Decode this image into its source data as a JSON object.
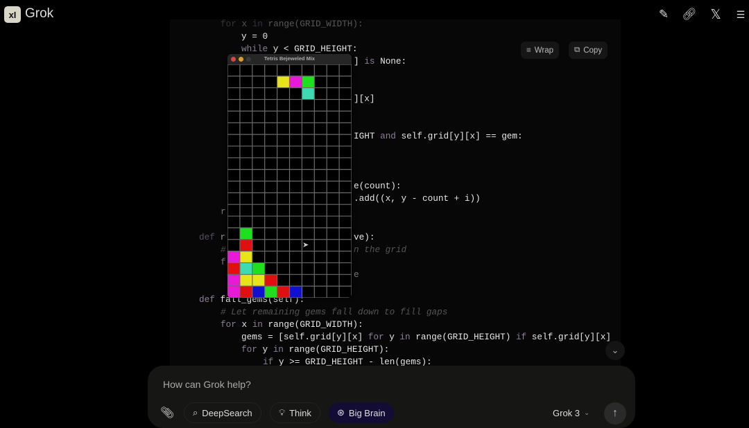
{
  "header": {
    "logo_text": "xI",
    "brand": "Grok",
    "icons": [
      "edit-icon",
      "link-icon",
      "x-logo-icon",
      "history-icon"
    ]
  },
  "code": {
    "wrap_label": "Wrap",
    "copy_label": "Copy",
    "lines": [
      "for x in range(GRID_WIDTH):",
      "y = 0",
      "while y < GRID_HEIGHT:",
      "] is None:",
      "][x]",
      "IGHT and self.grid[y][x] == gem:",
      "e(count):",
      ".add((x, y - count + i))",
      "r",
      "def r",
      "ve):",
      "#",
      "n the grid",
      "f",
      "e",
      "def fall_gems(self):",
      "# Let remaining gems fall down to fill gaps",
      "for x in range(GRID_WIDTH):",
      "gems = [self.grid[y][x] for y in range(GRID_HEIGHT) if self.grid[y][x]",
      "for y in range(GRID_HEIGHT):",
      "if y >= GRID_HEIGHT - len(gems):"
    ]
  },
  "game_window": {
    "title": "Tetris Bejeweled Mix",
    "columns": 10,
    "rows": 20,
    "colors": {
      "Y": "#e8e41a",
      "M": "#e81ad8",
      "G": "#1ee01e",
      "T": "#3ddcb0",
      "R": "#e01010",
      "B": "#1010d0"
    },
    "cells": [
      {
        "row": 1,
        "col": 4,
        "c": "Y"
      },
      {
        "row": 1,
        "col": 5,
        "c": "M"
      },
      {
        "row": 1,
        "col": 6,
        "c": "G"
      },
      {
        "row": 2,
        "col": 6,
        "c": "T"
      },
      {
        "row": 14,
        "col": 1,
        "c": "G"
      },
      {
        "row": 15,
        "col": 1,
        "c": "R"
      },
      {
        "row": 16,
        "col": 0,
        "c": "M"
      },
      {
        "row": 16,
        "col": 1,
        "c": "Y"
      },
      {
        "row": 17,
        "col": 0,
        "c": "R"
      },
      {
        "row": 17,
        "col": 1,
        "c": "T"
      },
      {
        "row": 17,
        "col": 2,
        "c": "G"
      },
      {
        "row": 18,
        "col": 0,
        "c": "M"
      },
      {
        "row": 18,
        "col": 1,
        "c": "Y"
      },
      {
        "row": 18,
        "col": 2,
        "c": "Y"
      },
      {
        "row": 18,
        "col": 3,
        "c": "R"
      },
      {
        "row": 19,
        "col": 0,
        "c": "M"
      },
      {
        "row": 19,
        "col": 1,
        "c": "R"
      },
      {
        "row": 19,
        "col": 2,
        "c": "B"
      },
      {
        "row": 19,
        "col": 3,
        "c": "G"
      },
      {
        "row": 19,
        "col": 4,
        "c": "R"
      },
      {
        "row": 19,
        "col": 5,
        "c": "B"
      }
    ]
  },
  "composer": {
    "placeholder": "How can Grok help?",
    "deepsearch_label": "DeepSearch",
    "think_label": "Think",
    "bigbrain_label": "Big Brain",
    "model_label": "Grok 3"
  }
}
